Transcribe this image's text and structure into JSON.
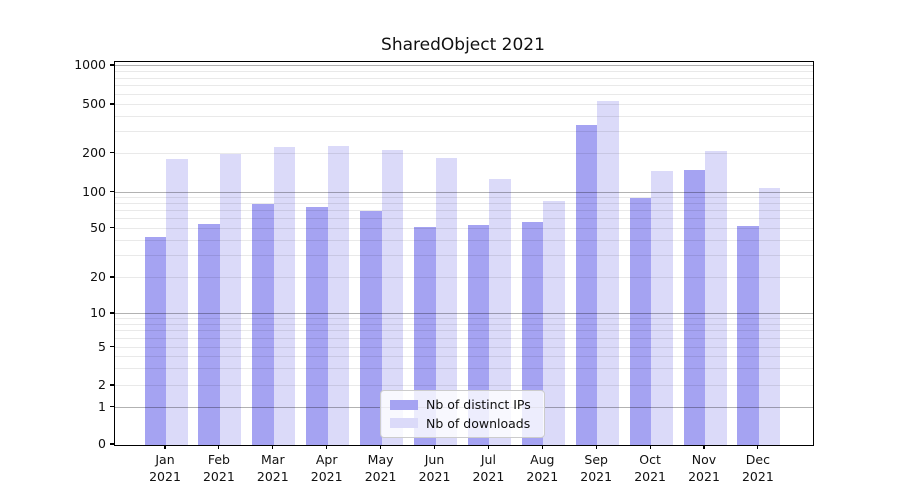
{
  "title": "SharedObject 2021",
  "colors": {
    "series_ips": "#a5a3f2",
    "series_downloads": "#dbdaf9",
    "grid_major": "#b2b2b2",
    "grid_minor": "#e8e8e8",
    "spine": "#000000",
    "background": "#ffffff"
  },
  "legend": {
    "position": "lower center"
  },
  "chart_data": {
    "type": "bar",
    "title": "SharedObject 2021",
    "categories": [
      "Jan 2021",
      "Feb 2021",
      "Mar 2021",
      "Apr 2021",
      "May 2021",
      "Jun 2021",
      "Jul 2021",
      "Aug 2021",
      "Sep 2021",
      "Oct 2021",
      "Nov 2021",
      "Dec 2021"
    ],
    "series": [
      {
        "name": "Nb of distinct IPs",
        "color": "#a5a3f2",
        "values": [
          43,
          55,
          80,
          75,
          70,
          52,
          54,
          57,
          344,
          90,
          148,
          53
        ]
      },
      {
        "name": "Nb of downloads",
        "color": "#dbdaf9",
        "values": [
          182,
          197,
          228,
          232,
          214,
          184,
          127,
          85,
          533,
          147,
          210,
          108
        ]
      }
    ],
    "xlabel": "",
    "ylabel": "",
    "yscale": "symlog",
    "yticks": [
      0,
      1,
      2,
      5,
      10,
      20,
      50,
      100,
      200,
      500,
      1000
    ],
    "ylim": [
      0,
      1075
    ],
    "grid": true,
    "legend_position": "lower center"
  }
}
